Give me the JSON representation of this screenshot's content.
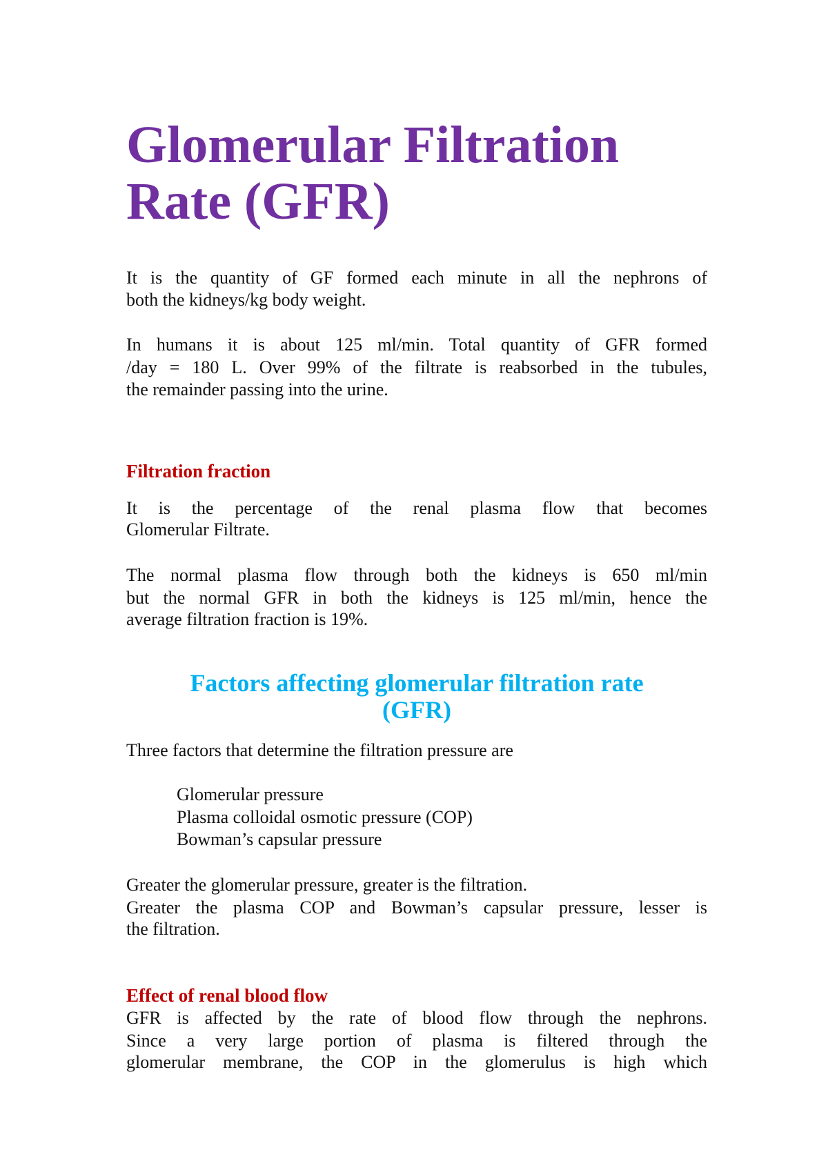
{
  "title": {
    "line1": "Glomerular  Filtration",
    "line2": "Rate (GFR)"
  },
  "p1": [
    "It is the quantity of GF formed each minute in all the nephrons of",
    "both the kidneys/kg body weight."
  ],
  "p2": [
    "In humans it is about 125 ml/min. Total quantity of GFR formed",
    "/day = 180 L. Over 99% of the filtrate is reabsorbed in the tubules,",
    "the remainder passing into the urine."
  ],
  "h_filtration_fraction": "Filtration fraction",
  "p3": [
    "It is the percentage of the renal plasma flow that becomes",
    "Glomerular Filtrate."
  ],
  "p4": [
    "The normal plasma flow through both the kidneys is 650 ml/min",
    "but the normal GFR in both the kidneys is 125 ml/min,  hence the",
    "average filtration fraction is 19%."
  ],
  "h_factors": [
    "Factors affecting glomerular filtration rate",
    "(GFR)"
  ],
  "p5": "Three factors that determine the filtration pressure are",
  "factors": [
    "Glomerular pressure",
    "Plasma colloidal osmotic pressure (COP)",
    "Bowman’s capsular pressure"
  ],
  "p6": [
    "Greater the glomerular pressure, greater is the filtration.",
    "Greater the plasma COP and Bowman’s capsular pressure, lesser is",
    "the filtration."
  ],
  "h_renal_blood_flow": "Effect of renal blood flow",
  "p7": [
    "GFR is affected by the rate of blood flow through the nephrons.",
    "Since a very large portion of plasma is filtered through the",
    "glomerular membrane, the COP in the glomerulus is high which"
  ],
  "colors": {
    "title": "#7030a0",
    "subheading": "#c00000",
    "section_heading": "#00b0f0"
  }
}
